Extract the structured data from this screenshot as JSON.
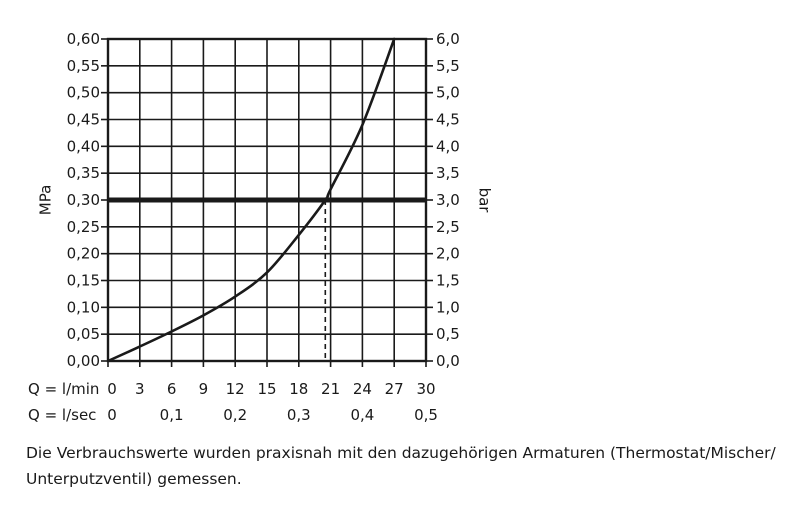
{
  "chart_data": {
    "type": "line",
    "left_axis": {
      "label": "MPa",
      "ylim": [
        0,
        0.6
      ],
      "ticks": [
        "0,00",
        "0,05",
        "0,10",
        "0,15",
        "0,20",
        "0,25",
        "0,30",
        "0,35",
        "0,40",
        "0,45",
        "0,50",
        "0,55",
        "0,60"
      ]
    },
    "right_axis": {
      "label": "bar",
      "ylim": [
        0,
        6
      ],
      "ticks": [
        "0,0",
        "0,5",
        "1,0",
        "1,5",
        "2,0",
        "2,5",
        "3,0",
        "3,5",
        "4,0",
        "4,5",
        "5,0",
        "5,5",
        "6,0"
      ]
    },
    "x_axis_lmin": {
      "label": "Q = l/min",
      "xlim": [
        0,
        30
      ],
      "ticks": [
        "0",
        "3",
        "6",
        "9",
        "12",
        "15",
        "18",
        "21",
        "24",
        "27",
        "30"
      ]
    },
    "x_axis_lsec": {
      "label": "Q = l/sec",
      "ticks": [
        "0",
        "0,1",
        "0,2",
        "0,3",
        "0,4",
        "0,5"
      ]
    },
    "grid": true,
    "series": [
      {
        "x": [
          0,
          3,
          6,
          9,
          12,
          15,
          18,
          20.5,
          21,
          24,
          27
        ],
        "y": [
          0,
          0.027,
          0.055,
          0.085,
          0.12,
          0.165,
          0.235,
          0.3,
          0.32,
          0.44,
          0.6
        ]
      }
    ],
    "reference_line": {
      "y": 0.3
    },
    "marker": {
      "x": 20.5,
      "y": 0.3
    }
  },
  "caption": "Die Verbrauchswerte wurden praxisnah mit den dazugehörigen Armaturen (Thermostat/Mischer/ Unterputzventil) gemessen."
}
